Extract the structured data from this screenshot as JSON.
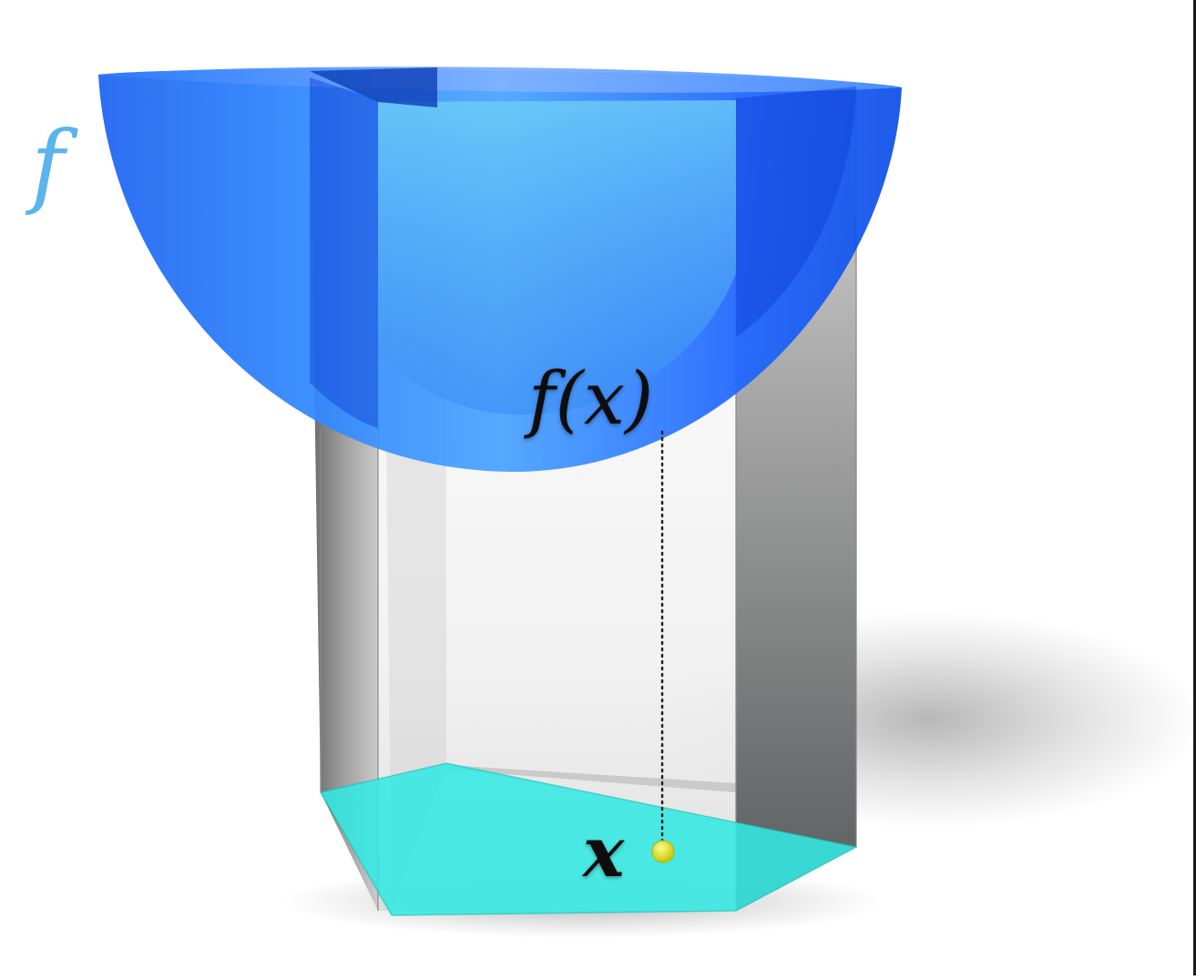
{
  "labels": {
    "function_symbol": "f",
    "value_label": "f(x)",
    "point_label": "x"
  },
  "colors": {
    "surface": "#1f6bff",
    "surface_light": "#4fc3f7",
    "prism_dark": "#6b6b6b",
    "prism_light": "#f4f4f4",
    "base": "#34e8e2",
    "point": "#e6e61a",
    "function_label": "#5ab4ee",
    "text": "#111111"
  }
}
